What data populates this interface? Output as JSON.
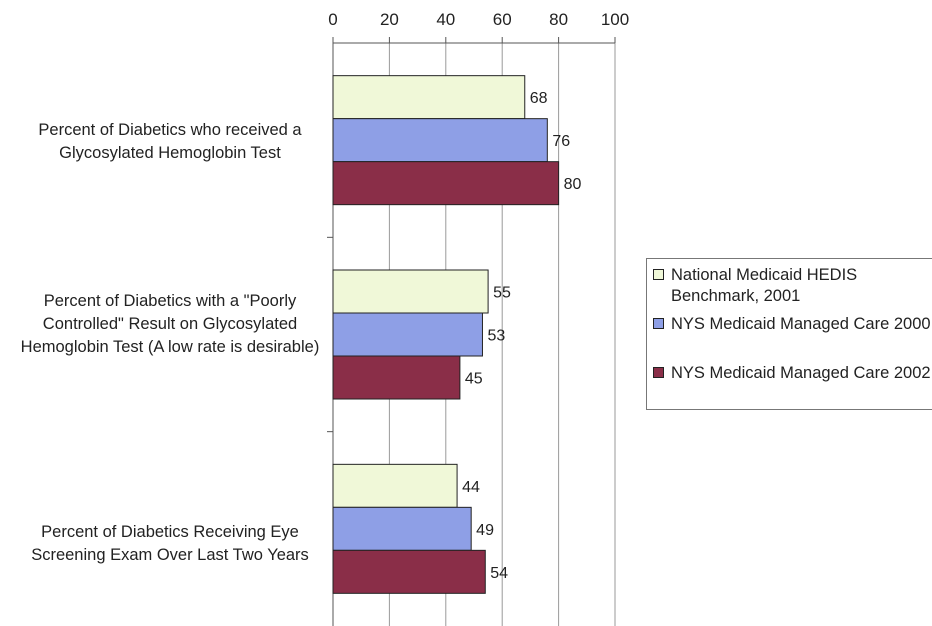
{
  "chart_data": {
    "type": "bar",
    "orientation": "horizontal",
    "xlim": [
      0,
      100
    ],
    "x_ticks": [
      0,
      20,
      40,
      60,
      80,
      100
    ],
    "categories": [
      "Percent of Diabetics who received a Glycosylated Hemoglobin Test",
      "Percent of Diabetics with a \"Poorly Controlled\" Result on Glycosylated Hemoglobin Test (A low rate is desirable)",
      "Percent of Diabetics Receiving Eye Screening Exam Over Last Two Years"
    ],
    "series": [
      {
        "name": "National Medicaid HEDIS Benchmark, 2001",
        "color": "#f0f8d8",
        "values": [
          68,
          55,
          44
        ]
      },
      {
        "name": "NYS Medicaid Managed Care 2000",
        "color": "#8e9fe6",
        "values": [
          76,
          53,
          49
        ]
      },
      {
        "name": "NYS Medicaid Managed Care 2002",
        "color": "#8a2e48",
        "values": [
          80,
          45,
          54
        ]
      }
    ],
    "grid": true,
    "legend_position": "right"
  }
}
